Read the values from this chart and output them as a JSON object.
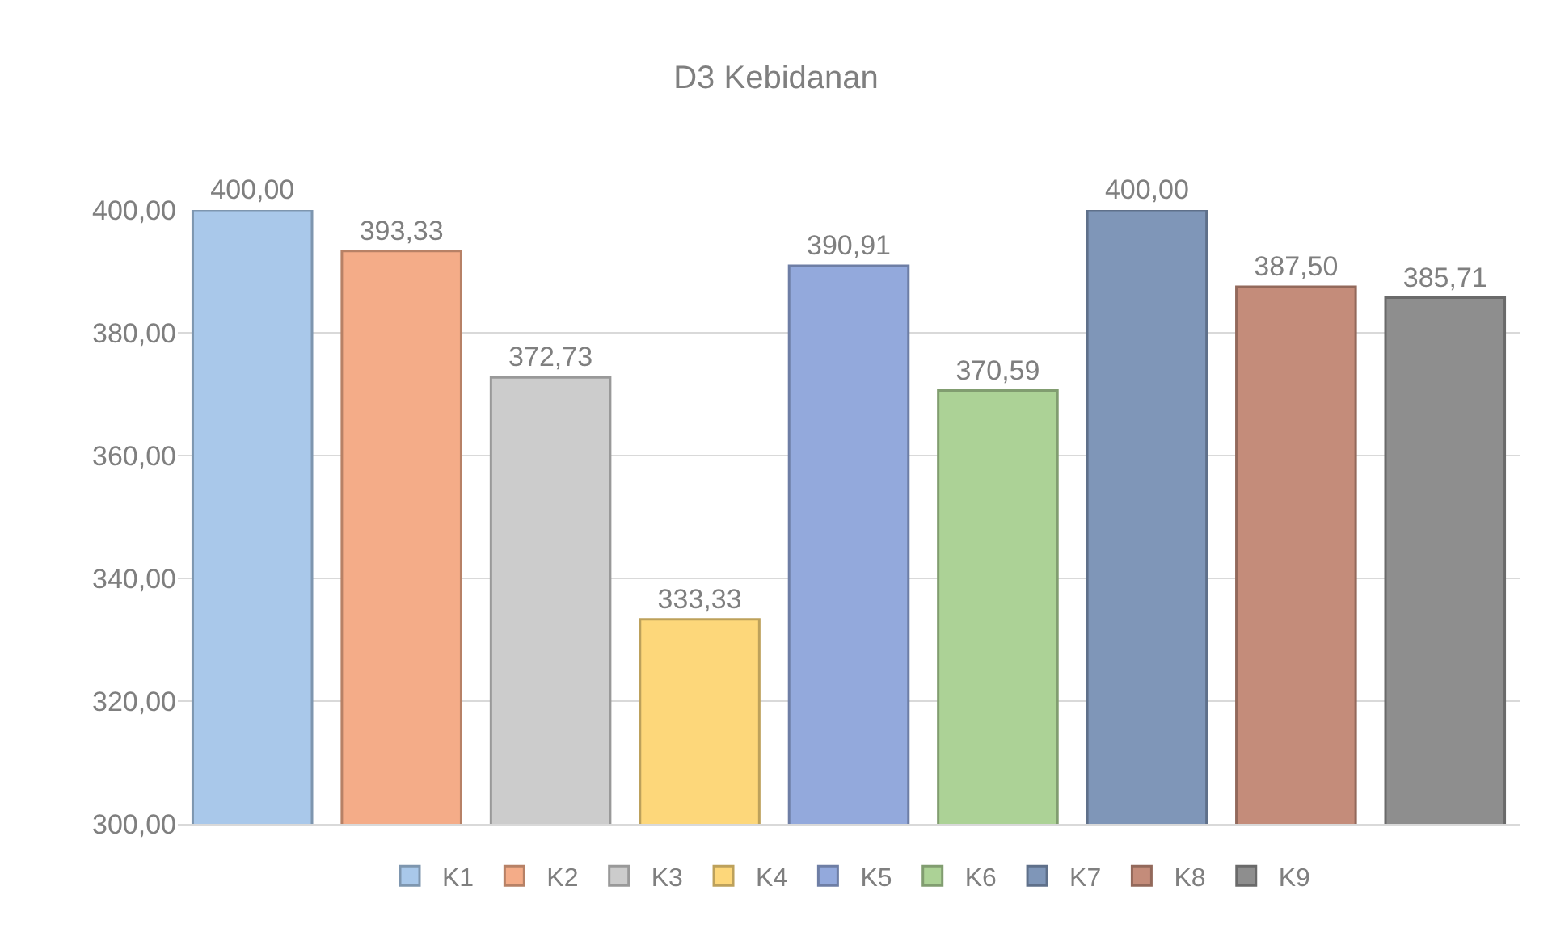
{
  "chart_data": {
    "type": "bar",
    "title": "D3 Kebidanan",
    "categories": [
      null,
      null,
      null,
      null,
      null,
      null,
      null,
      null,
      null
    ],
    "series": [
      {
        "name": "K1",
        "color": "#a9c8ea",
        "values": [
          400,
          null,
          null,
          null,
          null,
          null,
          null,
          null,
          null
        ],
        "value_labels": [
          "400,00",
          null,
          null,
          null,
          null,
          null,
          null,
          null,
          null
        ]
      },
      {
        "name": "K2",
        "color": "#f4ac88",
        "values": [
          null,
          393.33,
          null,
          null,
          null,
          null,
          null,
          null,
          null
        ],
        "value_labels": [
          null,
          "393,33",
          null,
          null,
          null,
          null,
          null,
          null,
          null
        ]
      },
      {
        "name": "K3",
        "color": "#cccccc",
        "values": [
          null,
          null,
          372.73,
          null,
          null,
          null,
          null,
          null,
          null
        ],
        "value_labels": [
          null,
          null,
          "372,73",
          null,
          null,
          null,
          null,
          null,
          null
        ]
      },
      {
        "name": "K4",
        "color": "#fdd77a",
        "values": [
          null,
          null,
          null,
          333.33,
          null,
          null,
          null,
          null,
          null
        ],
        "value_labels": [
          null,
          null,
          null,
          "333,33",
          null,
          null,
          null,
          null,
          null
        ]
      },
      {
        "name": "K5",
        "color": "#93a9dc",
        "values": [
          null,
          null,
          null,
          null,
          390.91,
          null,
          null,
          null,
          null
        ],
        "value_labels": [
          null,
          null,
          null,
          null,
          "390,91",
          null,
          null,
          null,
          null
        ]
      },
      {
        "name": "K6",
        "color": "#acd296",
        "values": [
          null,
          null,
          null,
          null,
          null,
          370.59,
          null,
          null,
          null
        ],
        "value_labels": [
          null,
          null,
          null,
          null,
          null,
          "370,59",
          null,
          null,
          null
        ]
      },
      {
        "name": "K7",
        "color": "#7f96b8",
        "values": [
          null,
          null,
          null,
          null,
          null,
          null,
          400,
          null,
          null
        ],
        "value_labels": [
          null,
          null,
          null,
          null,
          null,
          null,
          "400,00",
          null,
          null
        ]
      },
      {
        "name": "K8",
        "color": "#c48c7a",
        "values": [
          null,
          null,
          null,
          null,
          null,
          null,
          null,
          387.5,
          null
        ],
        "value_labels": [
          null,
          null,
          null,
          null,
          null,
          null,
          null,
          "387,50",
          null
        ]
      },
      {
        "name": "K9",
        "color": "#8e8e8e",
        "values": [
          null,
          null,
          null,
          null,
          null,
          null,
          null,
          null,
          385.71
        ],
        "value_labels": [
          null,
          null,
          null,
          null,
          null,
          null,
          null,
          null,
          "385,71"
        ]
      }
    ],
    "ylim": [
      300,
      400
    ],
    "yticks": [
      {
        "value": 300,
        "label": "300,00"
      },
      {
        "value": 320,
        "label": "320,00"
      },
      {
        "value": 340,
        "label": "340,00"
      },
      {
        "value": 360,
        "label": "360,00"
      },
      {
        "value": 380,
        "label": "380,00"
      },
      {
        "value": 400,
        "label": "400,00"
      }
    ],
    "grid": "y",
    "legend": "bottom"
  }
}
